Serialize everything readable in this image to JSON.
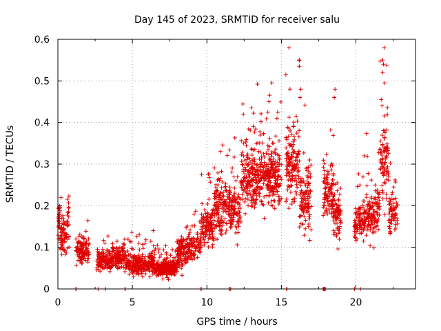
{
  "chart_data": {
    "type": "scatter",
    "title": "Day 145 of 2023, SRMTID for receiver salu",
    "xlabel": "GPS time / hours",
    "ylabel": "SRMTID / TECUs",
    "xlim": [
      0,
      24
    ],
    "ylim": [
      0,
      0.6
    ],
    "grid": true,
    "marker": "+",
    "marker_color": "#e00000",
    "x_ticks": [
      0,
      5,
      10,
      15,
      20
    ],
    "x_tick_labels": [
      "0",
      "5",
      "10",
      "15",
      "20"
    ],
    "y_ticks": [
      0,
      0.1,
      0.2,
      0.3,
      0.4,
      0.5,
      0.6
    ],
    "y_tick_labels": [
      "0",
      "0.1",
      "0.2",
      "0.3",
      "0.4",
      "0.5",
      "0.6"
    ],
    "series": [
      {
        "name": "salu",
        "profile_description": "piecewise segments [x_start, x_end, base_mean, spread, point_count] used to generate the dense point cloud",
        "segments": [
          [
            0.0,
            0.15,
            0.17,
            0.03,
            25
          ],
          [
            0.15,
            0.6,
            0.12,
            0.04,
            60
          ],
          [
            0.6,
            0.75,
            0.16,
            0.05,
            20
          ],
          [
            1.2,
            2.1,
            0.09,
            0.025,
            110
          ],
          [
            2.6,
            3.6,
            0.07,
            0.02,
            130
          ],
          [
            3.6,
            4.5,
            0.075,
            0.022,
            120
          ],
          [
            4.5,
            5.0,
            0.06,
            0.02,
            60
          ],
          [
            5.0,
            6.5,
            0.06,
            0.02,
            230
          ],
          [
            6.5,
            8.0,
            0.05,
            0.015,
            260
          ],
          [
            8.0,
            8.8,
            0.09,
            0.03,
            120
          ],
          [
            8.8,
            9.6,
            0.1,
            0.03,
            80
          ],
          [
            9.6,
            10.5,
            0.15,
            0.04,
            120
          ],
          [
            10.5,
            11.5,
            0.2,
            0.05,
            140
          ],
          [
            11.5,
            12.3,
            0.19,
            0.05,
            110
          ],
          [
            12.3,
            13.2,
            0.27,
            0.06,
            140
          ],
          [
            13.2,
            14.2,
            0.27,
            0.06,
            150
          ],
          [
            14.2,
            15.0,
            0.27,
            0.06,
            130
          ],
          [
            15.3,
            16.2,
            0.3,
            0.07,
            140
          ],
          [
            16.2,
            17.0,
            0.22,
            0.07,
            110
          ],
          [
            17.8,
            18.5,
            0.24,
            0.06,
            100
          ],
          [
            18.5,
            19.0,
            0.19,
            0.06,
            70
          ],
          [
            19.9,
            20.6,
            0.16,
            0.04,
            90
          ],
          [
            20.6,
            21.6,
            0.19,
            0.05,
            130
          ],
          [
            21.6,
            22.2,
            0.3,
            0.08,
            80
          ],
          [
            22.2,
            22.8,
            0.18,
            0.04,
            70
          ]
        ],
        "zero_points_x": [
          1.2,
          1.22,
          2.7,
          3.2,
          4.5,
          4.52,
          9.6,
          9.62,
          11.5,
          11.52,
          11.6,
          15.35,
          15.37,
          17.8,
          17.85,
          17.9,
          17.95,
          19.9,
          20.3
        ]
      }
    ]
  }
}
